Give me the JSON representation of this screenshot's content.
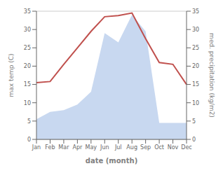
{
  "chart_data": {
    "type": "line",
    "categories": [
      "Jan",
      "Feb",
      "Mar",
      "Apr",
      "May",
      "Jun",
      "Jul",
      "Aug",
      "Sep",
      "Oct",
      "Nov",
      "Dec"
    ],
    "xlabel": "date (month)",
    "ylabel": "max temp (C)",
    "y2label": "med. precipitation (kg/m2)",
    "ylim": [
      0,
      35
    ],
    "yticks": [
      0,
      5,
      10,
      15,
      20,
      25,
      30,
      35
    ],
    "y2lim": [
      0,
      35
    ],
    "y2ticks": [
      0,
      5,
      10,
      15,
      20,
      25,
      30,
      35
    ],
    "grid": true,
    "series": [
      {
        "type": "area",
        "axis": "y2",
        "color": "#c8d8f0",
        "values": [
          5.5,
          7.5,
          8.0,
          9.5,
          13.0,
          29.0,
          26.5,
          34.0,
          29.5,
          4.5,
          4.5,
          4.5
        ]
      },
      {
        "type": "line",
        "axis": "y",
        "color": "#c0504d",
        "values": [
          15.5,
          15.8,
          20.5,
          25.0,
          29.5,
          33.5,
          33.8,
          34.5,
          27.5,
          21.0,
          20.5,
          15.0
        ]
      }
    ]
  }
}
